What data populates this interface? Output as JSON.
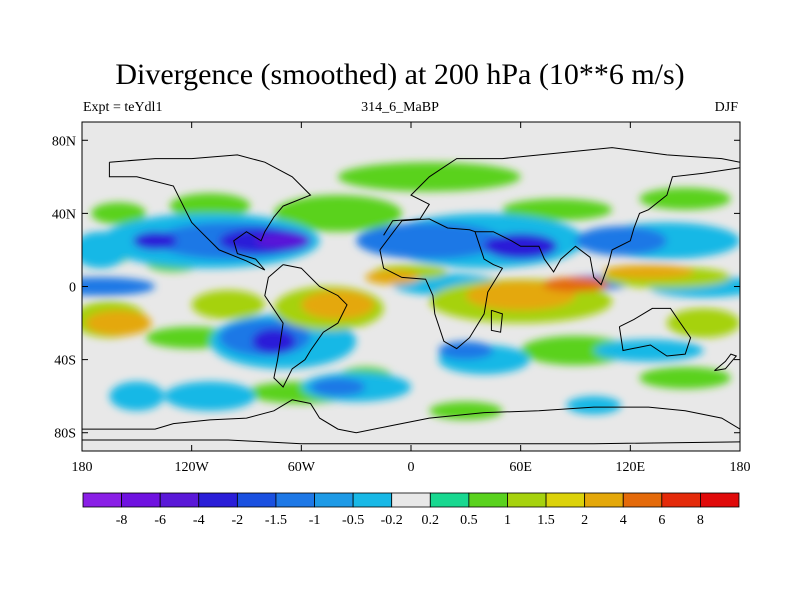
{
  "chart_data": {
    "type": "heatmap",
    "title": "Divergence (smoothed) at 200 hPa (10**6 m/s)",
    "subtitle_left": "Expt = teYdl1",
    "subtitle_center": "314_6_MaBP",
    "subtitle_right": "DJF",
    "x_range": [
      -180,
      180
    ],
    "y_range": [
      -90,
      90
    ],
    "x_ticks": [
      {
        "value": -180,
        "label": "180"
      },
      {
        "value": -120,
        "label": "120W"
      },
      {
        "value": -60,
        "label": "60W"
      },
      {
        "value": 0,
        "label": "0"
      },
      {
        "value": 60,
        "label": "60E"
      },
      {
        "value": 120,
        "label": "120E"
      },
      {
        "value": 180,
        "label": "180"
      }
    ],
    "y_ticks": [
      {
        "value": 80,
        "label": "80N"
      },
      {
        "value": 40,
        "label": "40N"
      },
      {
        "value": 0,
        "label": "0"
      },
      {
        "value": -40,
        "label": "40S"
      },
      {
        "value": -80,
        "label": "80S"
      }
    ],
    "colorbar": {
      "colors": [
        "#8a1fe6",
        "#6f12e0",
        "#5a18d8",
        "#2a1ed8",
        "#1a50e0",
        "#1e78e6",
        "#1e9ae6",
        "#18b8e6",
        "#e8e8e8",
        "#18d890",
        "#5ad21e",
        "#a6d20e",
        "#dcd20a",
        "#e4a80a",
        "#e46a0a",
        "#e42a0a",
        "#e00a0a"
      ],
      "labels": [
        "-8",
        "-6",
        "-4",
        "-2",
        "-1.5",
        "-1",
        "-0.5",
        "-0.2",
        "0.2",
        "0.5",
        "1",
        "1.5",
        "2",
        "4",
        "6",
        "8"
      ]
    },
    "regions": [
      {
        "level": 0.5,
        "lon": -160,
        "lat": 40,
        "rlon": 15,
        "rlat": 6
      },
      {
        "level": 0.5,
        "lon": -110,
        "lat": 44,
        "rlon": 22,
        "rlat": 7
      },
      {
        "level": 0.5,
        "lon": -40,
        "lat": 40,
        "rlon": 35,
        "rlat": 10
      },
      {
        "level": 0.5,
        "lon": -165,
        "lat": 18,
        "rlon": 12,
        "rlat": 6
      },
      {
        "level": 0.5,
        "lon": -130,
        "lat": 13,
        "rlon": 15,
        "rlat": 5
      },
      {
        "level": 0.5,
        "lon": 10,
        "lat": 60,
        "rlon": 50,
        "rlat": 8
      },
      {
        "level": 0.5,
        "lon": 150,
        "lat": 48,
        "rlon": 25,
        "rlat": 6
      },
      {
        "level": 0.5,
        "lon": 80,
        "lat": 42,
        "rlon": 30,
        "rlat": 6
      },
      {
        "level": 0.5,
        "lon": -120,
        "lat": -28,
        "rlon": 25,
        "rlat": 6
      },
      {
        "level": 0.5,
        "lon": -60,
        "lat": -58,
        "rlon": 30,
        "rlat": 6
      },
      {
        "level": 0.5,
        "lon": 30,
        "lat": -68,
        "rlon": 20,
        "rlat": 5
      },
      {
        "level": 0.5,
        "lon": 150,
        "lat": -50,
        "rlon": 25,
        "rlat": 6
      },
      {
        "level": 0.5,
        "lon": -25,
        "lat": -50,
        "rlon": 15,
        "rlat": 6
      },
      {
        "level": 0.5,
        "lon": 90,
        "lat": -35,
        "rlon": 30,
        "rlat": 8
      },
      {
        "level": -0.5,
        "lon": -170,
        "lat": 20,
        "rlon": 15,
        "rlat": 10
      },
      {
        "level": -0.5,
        "lon": -110,
        "lat": 25,
        "rlon": 60,
        "rlat": 15
      },
      {
        "level": -0.5,
        "lon": 40,
        "lat": 25,
        "rlon": 55,
        "rlat": 15
      },
      {
        "level": -0.5,
        "lon": 140,
        "lat": 25,
        "rlon": 40,
        "rlat": 10
      },
      {
        "level": -0.5,
        "lon": 160,
        "lat": 0,
        "rlon": 30,
        "rlat": 6
      },
      {
        "level": -0.5,
        "lon": -70,
        "lat": -30,
        "rlon": 40,
        "rlat": 15
      },
      {
        "level": -0.5,
        "lon": 40,
        "lat": -40,
        "rlon": 25,
        "rlat": 8
      },
      {
        "level": -0.5,
        "lon": 130,
        "lat": -35,
        "rlon": 30,
        "rlat": 6
      },
      {
        "level": -0.5,
        "lon": -150,
        "lat": -60,
        "rlon": 15,
        "rlat": 8
      },
      {
        "level": -0.5,
        "lon": -110,
        "lat": -60,
        "rlon": 25,
        "rlat": 8
      },
      {
        "level": -0.5,
        "lon": -30,
        "lat": -55,
        "rlon": 30,
        "rlat": 8
      },
      {
        "level": -0.5,
        "lon": 100,
        "lat": -65,
        "rlon": 15,
        "rlat": 5
      },
      {
        "level": -0.5,
        "lon": 20,
        "lat": 1,
        "rlon": 30,
        "rlat": 6
      },
      {
        "level": -1.2,
        "lon": -170,
        "lat": 0,
        "rlon": 30,
        "rlat": 5
      },
      {
        "level": -1.2,
        "lon": -100,
        "lat": 25,
        "rlon": 40,
        "rlat": 10
      },
      {
        "level": -1.2,
        "lon": 10,
        "lat": 25,
        "rlon": 40,
        "rlat": 10
      },
      {
        "level": -1.2,
        "lon": 115,
        "lat": 25,
        "rlon": 25,
        "rlat": 8
      },
      {
        "level": -1.2,
        "lon": -80,
        "lat": -28,
        "rlon": 25,
        "rlat": 10
      },
      {
        "level": -1.2,
        "lon": -40,
        "lat": -55,
        "rlon": 15,
        "rlat": 5
      },
      {
        "level": -1.2,
        "lon": 100,
        "lat": 2,
        "rlon": 20,
        "rlat": 4
      },
      {
        "level": -1.2,
        "lon": 30,
        "lat": -35,
        "rlon": 15,
        "rlat": 5
      },
      {
        "level": -2.5,
        "lon": -80,
        "lat": 25,
        "rlon": 25,
        "rlat": 7
      },
      {
        "level": -2.5,
        "lon": 60,
        "lat": 22,
        "rlon": 20,
        "rlat": 7
      },
      {
        "level": -2.5,
        "lon": -75,
        "lat": -30,
        "rlon": 12,
        "rlat": 7
      },
      {
        "level": -2.5,
        "lon": -140,
        "lat": 25,
        "rlon": 12,
        "rlat": 5
      },
      {
        "level": -5,
        "lon": -70,
        "lat": 25,
        "rlon": 15,
        "rlat": 4
      },
      {
        "level": 1.2,
        "lon": -165,
        "lat": -18,
        "rlon": 20,
        "rlat": 10
      },
      {
        "level": 1.2,
        "lon": -100,
        "lat": -10,
        "rlon": 20,
        "rlat": 8
      },
      {
        "level": 1.2,
        "lon": -45,
        "lat": -12,
        "rlon": 30,
        "rlat": 12
      },
      {
        "level": 1.2,
        "lon": 60,
        "lat": -8,
        "rlon": 50,
        "rlat": 12
      },
      {
        "level": 1.2,
        "lon": 140,
        "lat": 5,
        "rlon": 35,
        "rlat": 6
      },
      {
        "level": 1.2,
        "lon": 160,
        "lat": -20,
        "rlon": 20,
        "rlat": 8
      },
      {
        "level": 1.2,
        "lon": 0,
        "lat": 8,
        "rlon": 20,
        "rlat": 4
      },
      {
        "level": 3,
        "lon": -160,
        "lat": -20,
        "rlon": 18,
        "rlat": 7
      },
      {
        "level": 3,
        "lon": -40,
        "lat": -10,
        "rlon": 20,
        "rlat": 8
      },
      {
        "level": 3,
        "lon": 60,
        "lat": -5,
        "rlon": 30,
        "rlat": 8
      },
      {
        "level": 3,
        "lon": 130,
        "lat": 8,
        "rlon": 25,
        "rlat": 4
      },
      {
        "level": 3,
        "lon": -10,
        "lat": 5,
        "rlon": 15,
        "rlat": 4
      },
      {
        "level": 5,
        "lon": 90,
        "lat": 1,
        "rlon": 18,
        "rlat": 4
      }
    ],
    "coastlines": [
      [
        [
          -180,
          -78
        ],
        [
          -140,
          -78
        ],
        [
          -130,
          -75
        ],
        [
          -110,
          -73
        ],
        [
          -90,
          -72
        ],
        [
          -75,
          -68
        ],
        [
          -65,
          -62
        ],
        [
          -55,
          -64
        ],
        [
          -50,
          -72
        ],
        [
          -40,
          -78
        ],
        [
          -30,
          -80
        ],
        [
          -10,
          -76
        ],
        [
          10,
          -72
        ],
        [
          40,
          -69
        ],
        [
          70,
          -68
        ],
        [
          100,
          -66
        ],
        [
          130,
          -66
        ],
        [
          150,
          -68
        ],
        [
          170,
          -72
        ],
        [
          180,
          -78
        ]
      ],
      [
        [
          -180,
          -84
        ],
        [
          -100,
          -84
        ],
        [
          -60,
          -86
        ],
        [
          0,
          -86
        ],
        [
          100,
          -86
        ],
        [
          180,
          -85
        ]
      ],
      [
        [
          -70,
          12
        ],
        [
          -60,
          10
        ],
        [
          -50,
          0
        ],
        [
          -40,
          -5
        ],
        [
          -35,
          -10
        ],
        [
          -40,
          -20
        ],
        [
          -48,
          -25
        ],
        [
          -55,
          -35
        ],
        [
          -58,
          -40
        ],
        [
          -65,
          -45
        ],
        [
          -70,
          -55
        ],
        [
          -75,
          -50
        ],
        [
          -73,
          -40
        ],
        [
          -70,
          -20
        ],
        [
          -80,
          -5
        ],
        [
          -78,
          5
        ],
        [
          -70,
          12
        ]
      ],
      [
        [
          -165,
          68
        ],
        [
          -140,
          70
        ],
        [
          -120,
          70
        ],
        [
          -95,
          72
        ],
        [
          -80,
          68
        ],
        [
          -65,
          60
        ],
        [
          -55,
          50
        ],
        [
          -70,
          44
        ],
        [
          -75,
          38
        ],
        [
          -80,
          30
        ],
        [
          -82,
          25
        ],
        [
          -90,
          30
        ],
        [
          -97,
          25
        ],
        [
          -95,
          18
        ],
        [
          -85,
          15
        ],
        [
          -80,
          9
        ],
        [
          -90,
          14
        ],
        [
          -105,
          20
        ],
        [
          -115,
          30
        ],
        [
          -120,
          35
        ],
        [
          -125,
          45
        ],
        [
          -130,
          55
        ],
        [
          -150,
          60
        ],
        [
          -165,
          60
        ],
        [
          -165,
          68
        ]
      ],
      [
        [
          -15,
          28
        ],
        [
          -10,
          36
        ],
        [
          5,
          37
        ],
        [
          10,
          45
        ],
        [
          0,
          50
        ],
        [
          5,
          55
        ],
        [
          10,
          60
        ],
        [
          25,
          70
        ],
        [
          50,
          70
        ],
        [
          80,
          73
        ],
        [
          110,
          76
        ],
        [
          140,
          72
        ],
        [
          170,
          70
        ],
        [
          180,
          68
        ]
      ],
      [
        [
          -17,
          20
        ],
        [
          -15,
          10
        ],
        [
          -5,
          5
        ],
        [
          8,
          4
        ],
        [
          12,
          -5
        ],
        [
          13,
          -15
        ],
        [
          18,
          -30
        ],
        [
          25,
          -34
        ],
        [
          32,
          -28
        ],
        [
          40,
          -15
        ],
        [
          42,
          -3
        ],
        [
          50,
          10
        ],
        [
          45,
          12
        ],
        [
          40,
          15
        ],
        [
          35,
          30
        ],
        [
          32,
          31
        ],
        [
          20,
          32
        ],
        [
          10,
          37
        ],
        [
          -5,
          36
        ],
        [
          -17,
          20
        ]
      ],
      [
        [
          35,
          30
        ],
        [
          45,
          30
        ],
        [
          55,
          25
        ],
        [
          60,
          22
        ],
        [
          70,
          22
        ],
        [
          73,
          15
        ],
        [
          78,
          8
        ],
        [
          82,
          15
        ],
        [
          90,
          22
        ],
        [
          98,
          16
        ],
        [
          100,
          5
        ],
        [
          104,
          1
        ],
        [
          108,
          12
        ],
        [
          110,
          20
        ],
        [
          120,
          25
        ],
        [
          122,
          32
        ],
        [
          125,
          40
        ],
        [
          130,
          42
        ],
        [
          140,
          50
        ],
        [
          143,
          60
        ],
        [
          160,
          62
        ],
        [
          180,
          65
        ]
      ],
      [
        [
          114,
          -22
        ],
        [
          122,
          -18
        ],
        [
          132,
          -12
        ],
        [
          142,
          -12
        ],
        [
          146,
          -18
        ],
        [
          153,
          -28
        ],
        [
          150,
          -37
        ],
        [
          140,
          -38
        ],
        [
          131,
          -32
        ],
        [
          116,
          -35
        ],
        [
          114,
          -22
        ]
      ],
      [
        [
          166,
          -46
        ],
        [
          172,
          -41
        ],
        [
          175,
          -37
        ],
        [
          178,
          -38
        ],
        [
          172,
          -45
        ],
        [
          166,
          -46
        ]
      ],
      [
        [
          44,
          -13
        ],
        [
          50,
          -15
        ],
        [
          49,
          -25
        ],
        [
          44,
          -24
        ],
        [
          44,
          -13
        ]
      ]
    ]
  }
}
